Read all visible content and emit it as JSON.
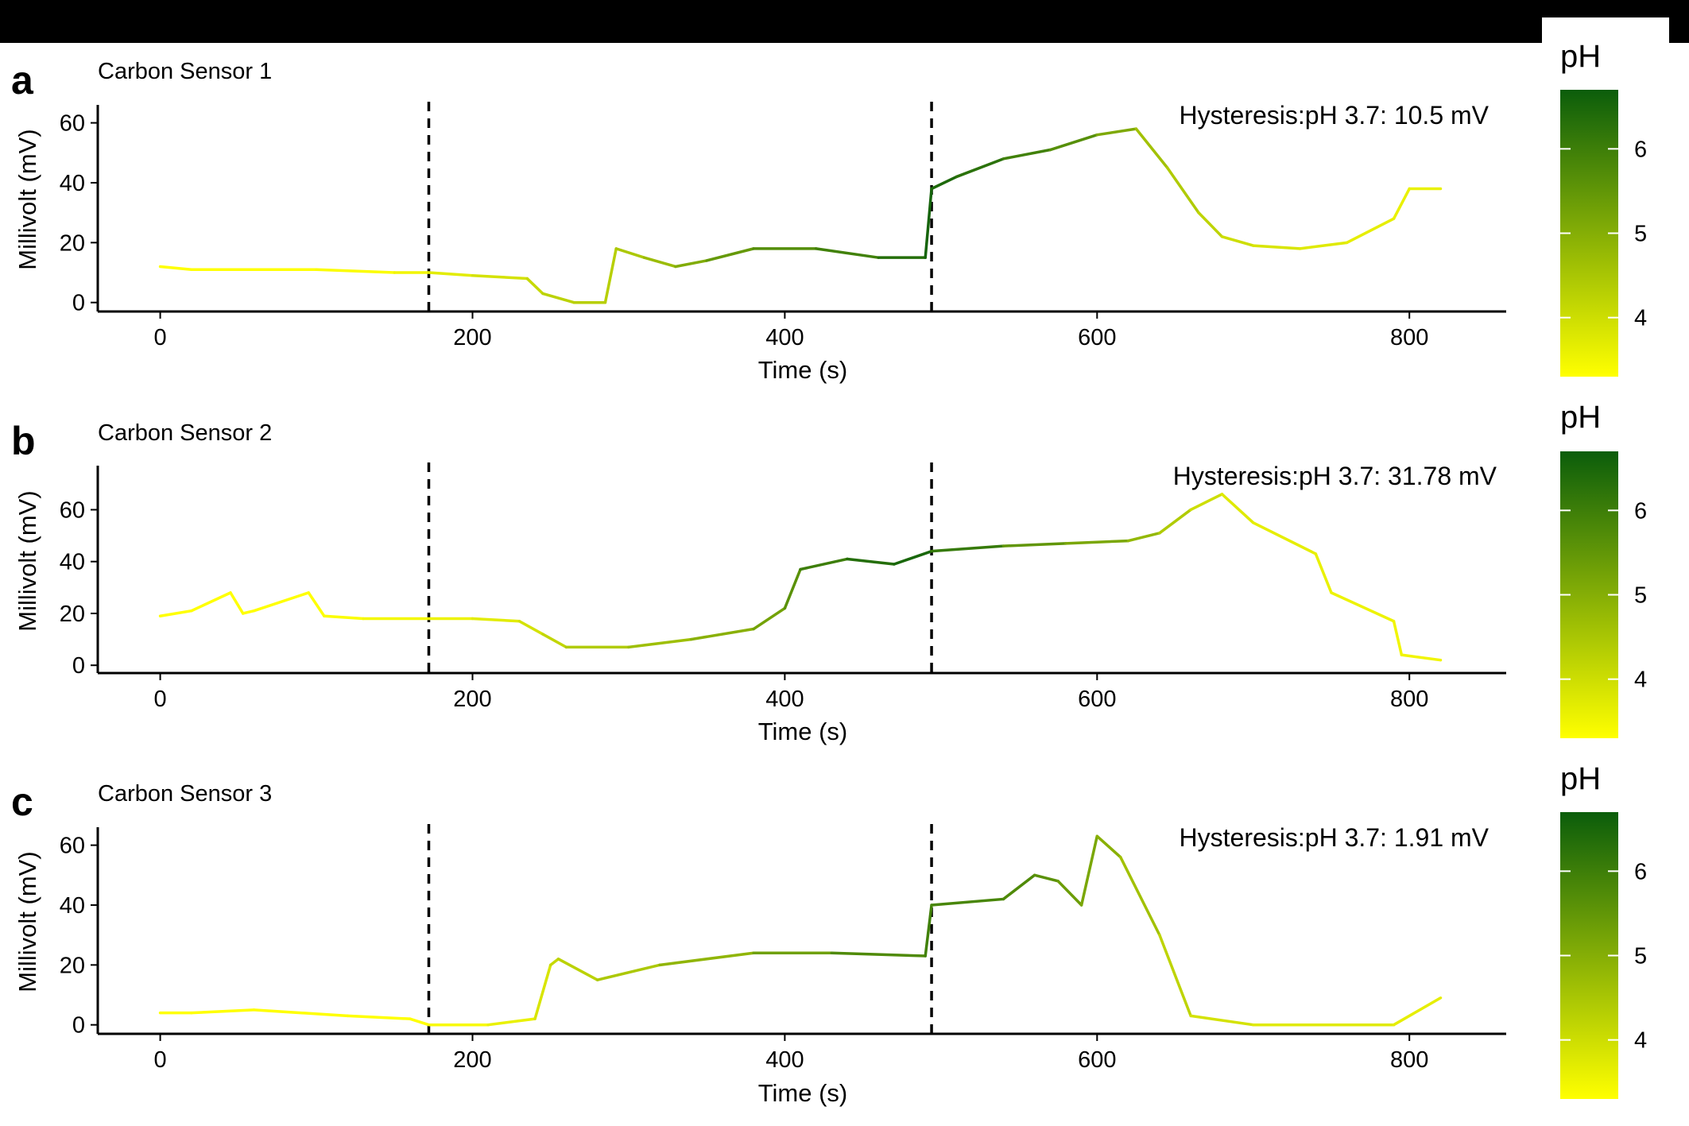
{
  "figure": {
    "colorscale": {
      "low": "#ffff00",
      "high": "#0b5d0b",
      "min": 3.3,
      "max": 6.7
    },
    "vlines": [
      172,
      494
    ]
  },
  "chart_data": [
    {
      "type": "line",
      "panel_letter": "a",
      "title": "Carbon Sensor 1",
      "annotation": "Hysteresis:pH 3.7: 10.5 mV",
      "xlabel": "Time (s)",
      "ylabel": "Millivolt (mV)",
      "xlim": [
        -40,
        862
      ],
      "ylim": [
        -3,
        66
      ],
      "xticks": [
        0,
        200,
        400,
        600,
        800
      ],
      "yticks": [
        0,
        20,
        40,
        60
      ],
      "legend": {
        "title": "pH",
        "ticks": [
          4,
          5,
          6
        ]
      },
      "x": [
        0,
        20,
        50,
        100,
        150,
        172,
        200,
        235,
        245,
        265,
        285,
        292,
        310,
        330,
        350,
        380,
        420,
        460,
        490,
        494,
        510,
        540,
        570,
        600,
        625,
        645,
        665,
        680,
        700,
        730,
        760,
        790,
        800,
        820
      ],
      "y": [
        12,
        11,
        11,
        11,
        10,
        10,
        9,
        8,
        3,
        0,
        0,
        18,
        15,
        12,
        14,
        18,
        18,
        15,
        15,
        38,
        42,
        48,
        51,
        56,
        58,
        45,
        30,
        22,
        19,
        18,
        20,
        28,
        38,
        38
      ],
      "ph": [
        3.3,
        3.3,
        3.3,
        3.3,
        3.4,
        3.6,
        3.8,
        4.0,
        4.2,
        4.3,
        4.3,
        4.3,
        4.6,
        4.8,
        5.3,
        5.6,
        5.8,
        6.1,
        6.6,
        6.5,
        6.4,
        6.1,
        5.8,
        5.5,
        4.7,
        4.5,
        4.3,
        4.1,
        3.9,
        3.8,
        3.7,
        3.6,
        3.6,
        3.6
      ]
    },
    {
      "type": "line",
      "panel_letter": "b",
      "title": "Carbon Sensor 2",
      "annotation": "Hysteresis:pH 3.7: 31.78 mV",
      "xlabel": "Time (s)",
      "ylabel": "Millivolt (mV)",
      "xlim": [
        -40,
        862
      ],
      "ylim": [
        -3,
        77
      ],
      "xticks": [
        0,
        200,
        400,
        600,
        800
      ],
      "yticks": [
        0,
        20,
        40,
        60
      ],
      "legend": {
        "title": "pH",
        "ticks": [
          4,
          5,
          6
        ]
      },
      "x": [
        0,
        20,
        45,
        53,
        60,
        95,
        105,
        130,
        172,
        200,
        230,
        245,
        260,
        300,
        340,
        380,
        400,
        410,
        440,
        470,
        494,
        540,
        580,
        620,
        640,
        660,
        680,
        700,
        740,
        750,
        790,
        795,
        820
      ],
      "y": [
        19,
        21,
        28,
        20,
        21,
        28,
        19,
        18,
        18,
        18,
        17,
        12,
        7,
        7,
        10,
        14,
        22,
        37,
        41,
        39,
        44,
        46,
        47,
        48,
        51,
        60,
        66,
        55,
        43,
        28,
        17,
        4,
        2
      ],
      "ph": [
        3.3,
        3.3,
        3.3,
        3.3,
        3.3,
        3.3,
        3.3,
        3.4,
        3.5,
        3.6,
        3.8,
        4.0,
        4.3,
        4.5,
        4.8,
        5.1,
        5.4,
        5.8,
        6.2,
        6.5,
        6.5,
        5.7,
        5.3,
        5.0,
        4.6,
        4.2,
        3.8,
        3.7,
        3.6,
        3.6,
        3.5,
        3.5,
        3.5
      ]
    },
    {
      "type": "line",
      "panel_letter": "c",
      "title": "Carbon Sensor 3",
      "annotation": "Hysteresis:pH 3.7: 1.91 mV",
      "xlabel": "Time (s)",
      "ylabel": "Millivolt (mV)",
      "xlim": [
        -40,
        862
      ],
      "ylim": [
        -3,
        66
      ],
      "xticks": [
        0,
        200,
        400,
        600,
        800
      ],
      "yticks": [
        0,
        20,
        40,
        60
      ],
      "legend": {
        "title": "pH",
        "ticks": [
          4,
          5,
          6
        ]
      },
      "x": [
        0,
        20,
        60,
        120,
        160,
        172,
        210,
        240,
        250,
        255,
        280,
        320,
        380,
        430,
        490,
        494,
        540,
        560,
        575,
        590,
        600,
        615,
        640,
        660,
        700,
        790,
        820
      ],
      "y": [
        4,
        4,
        5,
        3,
        2,
        0,
        0,
        2,
        20,
        22,
        15,
        20,
        24,
        24,
        23,
        40,
        42,
        50,
        48,
        40,
        63,
        56,
        30,
        3,
        0,
        0,
        9
      ],
      "ph": [
        3.3,
        3.3,
        3.3,
        3.3,
        3.3,
        3.3,
        3.5,
        3.7,
        4.0,
        4.2,
        4.3,
        4.6,
        5.1,
        5.5,
        6.0,
        5.9,
        5.8,
        5.7,
        5.5,
        5.2,
        5.1,
        4.8,
        4.4,
        4.0,
        3.8,
        3.7,
        3.6
      ]
    }
  ]
}
